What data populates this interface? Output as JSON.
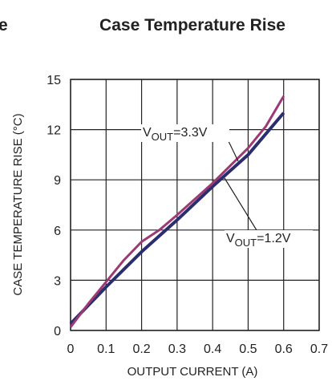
{
  "cropped_title_fragment": "e",
  "chart_data": {
    "type": "line",
    "title": "Case Temperature Rise",
    "xlabel": "OUTPUT CURRENT (A)",
    "ylabel": "CASE TEMPERATURE RISE (°C)",
    "xlim": [
      0,
      0.7
    ],
    "xticks": [
      0,
      0.1,
      0.2,
      0.3,
      0.4,
      0.5,
      0.6,
      0.7
    ],
    "ylim": [
      0,
      15
    ],
    "yticks": [
      0,
      3,
      6,
      9,
      12,
      15
    ],
    "grid": true,
    "series": [
      {
        "color": "#9b3a74",
        "x": [
          0,
          0.05,
          0.1,
          0.15,
          0.2,
          0.25,
          0.3,
          0.4,
          0.5,
          0.55,
          0.6
        ],
        "values": [
          0.2,
          1.6,
          2.9,
          4.2,
          5.3,
          6,
          6.9,
          8.8,
          10.9,
          12.2,
          14
        ]
      },
      {
        "color": "#2b2e6e",
        "x": [
          0,
          0.05,
          0.1,
          0.2,
          0.3,
          0.4,
          0.5,
          0.6
        ],
        "values": [
          0.4,
          1.5,
          2.6,
          4.7,
          6.6,
          8.6,
          10.5,
          13
        ]
      }
    ],
    "annotations": [
      {
        "prefix": "V",
        "subscript": "OUT",
        "suffix": "=3.3V"
      },
      {
        "prefix": "V",
        "subscript": "OUT",
        "suffix": "=1.2V"
      }
    ]
  }
}
